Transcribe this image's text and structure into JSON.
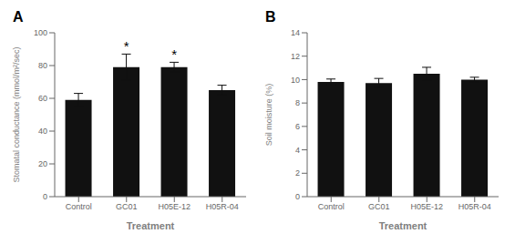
{
  "chart_data": [
    {
      "type": "bar",
      "title": "A",
      "categories": [
        "Control",
        "GC01",
        "H05E-12",
        "H05R-04"
      ],
      "values": [
        59,
        79,
        79,
        65
      ],
      "errors": [
        4,
        8,
        3,
        3
      ],
      "annotations": [
        {
          "category": "GC01",
          "text": "*"
        },
        {
          "category": "H05E-12",
          "text": "*"
        }
      ],
      "ylabel": "Stomatal conductance (mmol/m²/sec)",
      "xlabel": "Treatment",
      "ylim": [
        0,
        100
      ],
      "yticks": [
        0,
        20,
        40,
        60,
        80,
        100
      ],
      "color": "#111111",
      "grid": false
    },
    {
      "type": "bar",
      "title": "B",
      "categories": [
        "Control",
        "GC01",
        "H05E-12",
        "H05R-04"
      ],
      "values": [
        9.8,
        9.7,
        10.5,
        10.0
      ],
      "errors": [
        0.25,
        0.4,
        0.55,
        0.2
      ],
      "annotations": [],
      "ylabel": "Soil moisture (%)",
      "xlabel": "Treatment",
      "ylim": [
        0,
        14
      ],
      "yticks": [
        0,
        2,
        4,
        6,
        8,
        10,
        12,
        14
      ],
      "color": "#111111",
      "grid": false
    }
  ]
}
